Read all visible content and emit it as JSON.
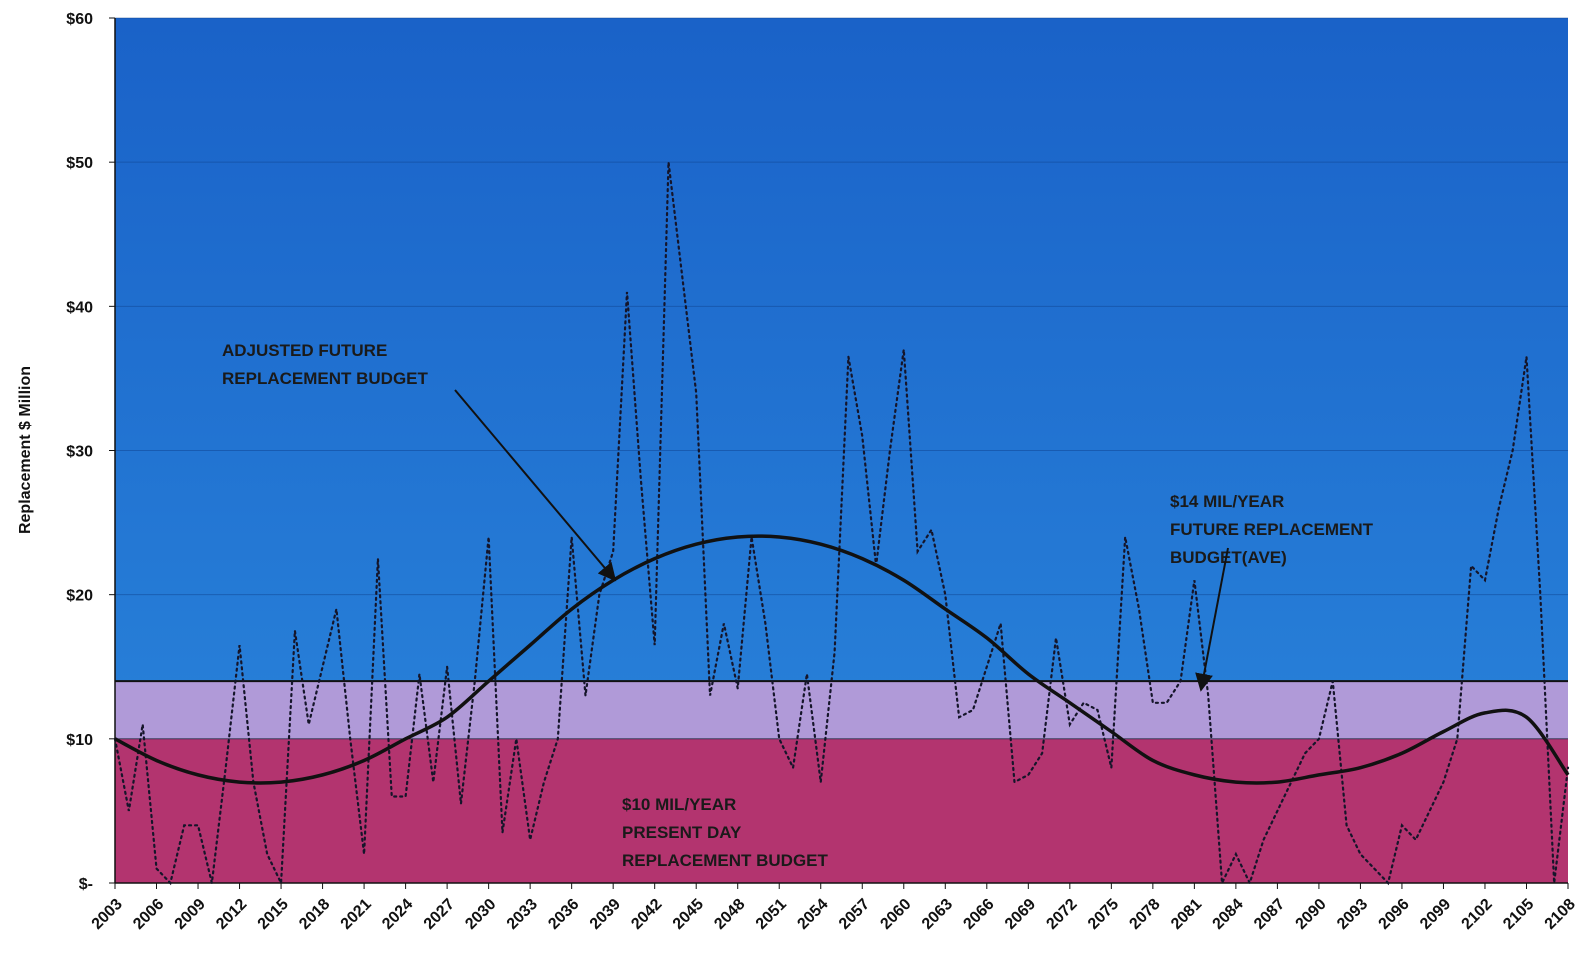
{
  "chart_data": {
    "type": "line",
    "y_label": "Replacement $ Million",
    "xlim": [
      2003,
      2108
    ],
    "xticks": [
      2003,
      2006,
      2009,
      2012,
      2015,
      2018,
      2021,
      2024,
      2027,
      2030,
      2033,
      2036,
      2039,
      2042,
      2045,
      2048,
      2051,
      2054,
      2057,
      2060,
      2063,
      2066,
      2069,
      2072,
      2075,
      2078,
      2081,
      2084,
      2087,
      2090,
      2093,
      2096,
      2099,
      2102,
      2105,
      2108
    ],
    "ylim": [
      0,
      60
    ],
    "yticks": [
      {
        "value": 0,
        "label": "$-"
      },
      {
        "value": 10,
        "label": "$10"
      },
      {
        "value": 20,
        "label": "$20"
      },
      {
        "value": 30,
        "label": "$30"
      },
      {
        "value": 40,
        "label": "$40"
      },
      {
        "value": 50,
        "label": "$50"
      },
      {
        "value": 60,
        "label": "$60"
      }
    ],
    "grid": true,
    "background": "#1f6fd0",
    "bands": [
      {
        "from": 0,
        "to": 10,
        "color": "#b3346f",
        "label": [
          "$10 MIL/YEAR",
          "PRESENT DAY",
          "REPLACEMENT BUDGET"
        ]
      },
      {
        "from": 10,
        "to": 14,
        "color": "#b09ad8",
        "label": [
          "$14 MIL/YEAR",
          "FUTURE REPLACEMENT",
          "BUDGET(AVE)"
        ]
      }
    ],
    "series": [
      {
        "color": "#15152a",
        "style": "dotted",
        "x": [
          2003,
          2004,
          2005,
          2006,
          2007,
          2008,
          2009,
          2010,
          2011,
          2012,
          2013,
          2014,
          2015,
          2016,
          2017,
          2018,
          2019,
          2020,
          2021,
          2022,
          2023,
          2024,
          2025,
          2026,
          2027,
          2028,
          2029,
          2030,
          2031,
          2032,
          2033,
          2034,
          2035,
          2036,
          2037,
          2038,
          2039,
          2040,
          2041,
          2042,
          2043,
          2044,
          2045,
          2046,
          2047,
          2048,
          2049,
          2050,
          2051,
          2052,
          2053,
          2054,
          2055,
          2056,
          2057,
          2058,
          2059,
          2060,
          2061,
          2062,
          2063,
          2064,
          2065,
          2066,
          2067,
          2068,
          2069,
          2070,
          2071,
          2072,
          2073,
          2074,
          2075,
          2076,
          2077,
          2078,
          2079,
          2080,
          2081,
          2082,
          2083,
          2084,
          2085,
          2086,
          2087,
          2088,
          2089,
          2090,
          2091,
          2092,
          2093,
          2094,
          2095,
          2096,
          2097,
          2098,
          2099,
          2100,
          2101,
          2102,
          2103,
          2104,
          2105,
          2106,
          2107,
          2108
        ],
        "values": [
          10,
          5,
          11,
          1,
          0,
          4,
          4,
          0,
          8,
          16.5,
          7,
          2,
          0,
          17.5,
          11,
          15,
          19,
          10,
          2,
          22.5,
          6,
          6,
          14.5,
          7,
          15,
          5.5,
          14,
          24,
          3.5,
          10,
          3,
          7,
          10,
          24,
          13,
          20,
          23,
          41,
          28,
          16.5,
          50,
          42,
          34,
          13,
          18,
          13.5,
          24,
          18,
          10,
          8,
          14.5,
          7,
          16,
          36.5,
          31,
          22,
          30,
          37,
          23,
          24.5,
          20,
          11.5,
          12,
          15,
          18,
          7,
          7.5,
          9,
          17,
          11,
          12.5,
          12,
          8,
          24,
          19,
          12.5,
          12.5,
          14,
          21,
          13,
          0,
          2,
          0,
          3,
          5,
          7,
          9,
          10,
          14,
          4,
          2,
          1,
          0,
          4,
          3,
          5,
          7,
          10,
          22,
          21,
          26,
          30,
          36.5,
          20,
          0,
          8
        ]
      },
      {
        "color": "#111111",
        "style": "solid",
        "label": [
          "ADJUSTED FUTURE",
          "REPLACEMENT BUDGET"
        ],
        "x": [
          2003,
          2006,
          2009,
          2012,
          2015,
          2018,
          2021,
          2024,
          2027,
          2030,
          2033,
          2036,
          2039,
          2042,
          2045,
          2048,
          2051,
          2054,
          2057,
          2060,
          2063,
          2066,
          2069,
          2072,
          2075,
          2078,
          2081,
          2084,
          2087,
          2090,
          2093,
          2096,
          2099,
          2102,
          2105,
          2108
        ],
        "values": [
          10,
          8.5,
          7.5,
          7,
          7,
          7.5,
          8.5,
          10,
          11.5,
          14,
          16.5,
          19,
          21,
          22.5,
          23.5,
          24,
          24,
          23.5,
          22.5,
          21,
          19,
          17,
          14.5,
          12.5,
          10.5,
          8.5,
          7.5,
          7,
          7,
          7.5,
          8,
          9,
          10.5,
          11.8,
          11.5,
          7.5
        ]
      }
    ]
  }
}
